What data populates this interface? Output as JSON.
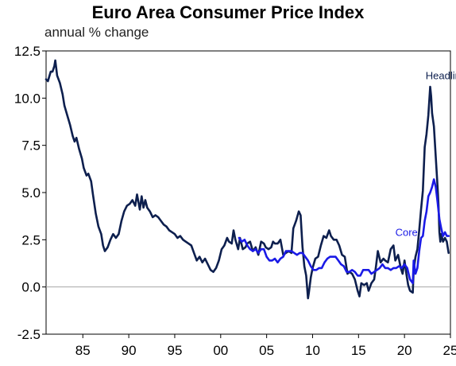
{
  "chart_data": {
    "type": "line",
    "title": "Euro Area Consumer Price Index",
    "subtitle": "annual % change",
    "xlabel": "",
    "ylabel": "",
    "xlim": [
      1981.0,
      2025.0
    ],
    "ylim": [
      -2.5,
      12.5
    ],
    "grid": false,
    "zero_line": true,
    "x_tick_labels": [
      {
        "x": 1985,
        "label": "85"
      },
      {
        "x": 1990,
        "label": "90"
      },
      {
        "x": 1995,
        "label": "95"
      },
      {
        "x": 2000,
        "label": "00"
      },
      {
        "x": 2005,
        "label": "05"
      },
      {
        "x": 2010,
        "label": "10"
      },
      {
        "x": 2015,
        "label": "15"
      },
      {
        "x": 2020,
        "label": "20"
      },
      {
        "x": 2025,
        "label": "25"
      }
    ],
    "y_ticks": [
      {
        "y": 12.5,
        "label": "12.5"
      },
      {
        "y": 10.0,
        "label": "10.0"
      },
      {
        "y": 7.5,
        "label": "7.5"
      },
      {
        "y": 5.0,
        "label": "5.0"
      },
      {
        "y": 2.5,
        "label": "2.5"
      },
      {
        "y": 0.0,
        "label": "0.0"
      },
      {
        "y": -2.5,
        "label": "-2.5"
      }
    ],
    "series": [
      {
        "name": "Headline",
        "color": "#0d1f4e",
        "points": [
          [
            1981.0,
            11.0
          ],
          [
            1981.2,
            10.9
          ],
          [
            1981.5,
            11.4
          ],
          [
            1981.7,
            11.4
          ],
          [
            1981.9,
            11.7
          ],
          [
            1982.0,
            12.0
          ],
          [
            1982.2,
            11.2
          ],
          [
            1982.5,
            10.8
          ],
          [
            1982.8,
            10.2
          ],
          [
            1983.0,
            9.6
          ],
          [
            1983.3,
            9.1
          ],
          [
            1983.6,
            8.6
          ],
          [
            1983.9,
            8.0
          ],
          [
            1984.1,
            7.7
          ],
          [
            1984.3,
            7.9
          ],
          [
            1984.6,
            7.3
          ],
          [
            1984.9,
            6.8
          ],
          [
            1985.1,
            6.3
          ],
          [
            1985.4,
            5.9
          ],
          [
            1985.6,
            6.0
          ],
          [
            1985.9,
            5.6
          ],
          [
            1986.1,
            4.9
          ],
          [
            1986.4,
            3.9
          ],
          [
            1986.7,
            3.2
          ],
          [
            1987.0,
            2.8
          ],
          [
            1987.2,
            2.2
          ],
          [
            1987.4,
            1.9
          ],
          [
            1987.7,
            2.1
          ],
          [
            1988.0,
            2.5
          ],
          [
            1988.3,
            2.8
          ],
          [
            1988.6,
            2.6
          ],
          [
            1988.9,
            2.8
          ],
          [
            1989.2,
            3.5
          ],
          [
            1989.5,
            4.0
          ],
          [
            1989.8,
            4.3
          ],
          [
            1990.1,
            4.4
          ],
          [
            1990.4,
            4.6
          ],
          [
            1990.7,
            4.3
          ],
          [
            1990.9,
            4.9
          ],
          [
            1991.2,
            4.1
          ],
          [
            1991.4,
            4.8
          ],
          [
            1991.6,
            4.2
          ],
          [
            1991.8,
            4.6
          ],
          [
            1992.0,
            4.2
          ],
          [
            1992.3,
            4.0
          ],
          [
            1992.6,
            3.7
          ],
          [
            1992.9,
            3.8
          ],
          [
            1993.2,
            3.7
          ],
          [
            1993.5,
            3.5
          ],
          [
            1993.8,
            3.3
          ],
          [
            1994.1,
            3.2
          ],
          [
            1994.4,
            3.0
          ],
          [
            1994.7,
            2.9
          ],
          [
            1995.0,
            2.8
          ],
          [
            1995.3,
            2.6
          ],
          [
            1995.6,
            2.7
          ],
          [
            1995.9,
            2.5
          ],
          [
            1996.2,
            2.4
          ],
          [
            1996.5,
            2.3
          ],
          [
            1996.8,
            2.2
          ],
          [
            1997.1,
            1.8
          ],
          [
            1997.4,
            1.4
          ],
          [
            1997.7,
            1.6
          ],
          [
            1998.0,
            1.3
          ],
          [
            1998.3,
            1.5
          ],
          [
            1998.6,
            1.2
          ],
          [
            1998.9,
            0.9
          ],
          [
            1999.2,
            0.8
          ],
          [
            1999.5,
            1.0
          ],
          [
            1999.8,
            1.4
          ],
          [
            2000.1,
            2.0
          ],
          [
            2000.4,
            2.2
          ],
          [
            2000.7,
            2.6
          ],
          [
            2000.9,
            2.4
          ],
          [
            2001.2,
            2.3
          ],
          [
            2001.4,
            3.0
          ],
          [
            2001.6,
            2.5
          ],
          [
            2001.9,
            2.0
          ],
          [
            2002.1,
            2.6
          ],
          [
            2002.4,
            2.0
          ],
          [
            2002.7,
            2.1
          ],
          [
            2002.9,
            2.3
          ],
          [
            2003.2,
            2.4
          ],
          [
            2003.5,
            1.9
          ],
          [
            2003.8,
            2.1
          ],
          [
            2004.1,
            1.7
          ],
          [
            2004.4,
            2.4
          ],
          [
            2004.7,
            2.3
          ],
          [
            2004.9,
            2.1
          ],
          [
            2005.2,
            2.0
          ],
          [
            2005.5,
            2.1
          ],
          [
            2005.7,
            2.4
          ],
          [
            2005.9,
            2.3
          ],
          [
            2006.2,
            2.3
          ],
          [
            2006.5,
            2.5
          ],
          [
            2006.8,
            1.7
          ],
          [
            2007.1,
            1.8
          ],
          [
            2007.4,
            1.9
          ],
          [
            2007.7,
            1.8
          ],
          [
            2007.9,
            3.1
          ],
          [
            2008.2,
            3.5
          ],
          [
            2008.5,
            4.0
          ],
          [
            2008.7,
            3.8
          ],
          [
            2008.9,
            2.1
          ],
          [
            2009.1,
            1.1
          ],
          [
            2009.3,
            0.6
          ],
          [
            2009.5,
            -0.6
          ],
          [
            2009.6,
            -0.3
          ],
          [
            2009.8,
            0.5
          ],
          [
            2010.0,
            1.0
          ],
          [
            2010.3,
            1.5
          ],
          [
            2010.6,
            1.6
          ],
          [
            2010.9,
            2.2
          ],
          [
            2011.2,
            2.7
          ],
          [
            2011.5,
            2.6
          ],
          [
            2011.8,
            3.0
          ],
          [
            2012.0,
            2.7
          ],
          [
            2012.3,
            2.5
          ],
          [
            2012.6,
            2.5
          ],
          [
            2012.9,
            2.2
          ],
          [
            2013.2,
            1.7
          ],
          [
            2013.5,
            1.6
          ],
          [
            2013.8,
            0.7
          ],
          [
            2014.0,
            0.8
          ],
          [
            2014.3,
            0.7
          ],
          [
            2014.6,
            0.4
          ],
          [
            2014.9,
            -0.2
          ],
          [
            2015.1,
            -0.5
          ],
          [
            2015.3,
            0.2
          ],
          [
            2015.6,
            0.1
          ],
          [
            2015.9,
            0.2
          ],
          [
            2016.1,
            -0.2
          ],
          [
            2016.4,
            0.2
          ],
          [
            2016.7,
            0.4
          ],
          [
            2016.9,
            1.1
          ],
          [
            2017.1,
            1.9
          ],
          [
            2017.4,
            1.3
          ],
          [
            2017.7,
            1.5
          ],
          [
            2017.9,
            1.4
          ],
          [
            2018.2,
            1.3
          ],
          [
            2018.5,
            2.0
          ],
          [
            2018.8,
            2.2
          ],
          [
            2019.0,
            1.4
          ],
          [
            2019.3,
            1.7
          ],
          [
            2019.6,
            1.0
          ],
          [
            2019.8,
            0.7
          ],
          [
            2020.0,
            1.4
          ],
          [
            2020.2,
            0.7
          ],
          [
            2020.4,
            0.1
          ],
          [
            2020.6,
            -0.2
          ],
          [
            2020.9,
            -0.3
          ],
          [
            2021.0,
            0.9
          ],
          [
            2021.2,
            1.6
          ],
          [
            2021.4,
            2.0
          ],
          [
            2021.6,
            3.0
          ],
          [
            2021.8,
            4.1
          ],
          [
            2022.0,
            5.1
          ],
          [
            2022.2,
            7.4
          ],
          [
            2022.4,
            8.1
          ],
          [
            2022.6,
            9.1
          ],
          [
            2022.8,
            10.6
          ],
          [
            2022.9,
            10.1
          ],
          [
            2023.0,
            9.2
          ],
          [
            2023.2,
            8.5
          ],
          [
            2023.4,
            6.9
          ],
          [
            2023.6,
            5.3
          ],
          [
            2023.7,
            4.3
          ],
          [
            2023.8,
            2.9
          ],
          [
            2023.9,
            2.4
          ],
          [
            2024.0,
            2.8
          ],
          [
            2024.2,
            2.4
          ],
          [
            2024.4,
            2.6
          ],
          [
            2024.6,
            2.4
          ],
          [
            2024.8,
            1.8
          ]
        ]
      },
      {
        "name": "Core",
        "color": "#1a1ae6",
        "points": [
          [
            2002.0,
            2.6
          ],
          [
            2002.3,
            2.4
          ],
          [
            2002.6,
            2.5
          ],
          [
            2002.9,
            2.2
          ],
          [
            2003.2,
            2.0
          ],
          [
            2003.5,
            1.9
          ],
          [
            2003.8,
            2.0
          ],
          [
            2004.1,
            1.8
          ],
          [
            2004.4,
            2.0
          ],
          [
            2004.7,
            2.0
          ],
          [
            2005.0,
            1.6
          ],
          [
            2005.3,
            1.4
          ],
          [
            2005.6,
            1.4
          ],
          [
            2005.9,
            1.5
          ],
          [
            2006.2,
            1.3
          ],
          [
            2006.5,
            1.5
          ],
          [
            2006.8,
            1.6
          ],
          [
            2007.1,
            1.9
          ],
          [
            2007.4,
            1.9
          ],
          [
            2007.7,
            1.9
          ],
          [
            2008.0,
            1.8
          ],
          [
            2008.3,
            1.7
          ],
          [
            2008.6,
            1.8
          ],
          [
            2008.9,
            1.8
          ],
          [
            2009.2,
            1.6
          ],
          [
            2009.5,
            1.4
          ],
          [
            2009.8,
            1.1
          ],
          [
            2010.1,
            0.9
          ],
          [
            2010.4,
            0.9
          ],
          [
            2010.7,
            1.0
          ],
          [
            2011.0,
            1.0
          ],
          [
            2011.3,
            1.3
          ],
          [
            2011.6,
            1.5
          ],
          [
            2011.9,
            1.6
          ],
          [
            2012.2,
            1.6
          ],
          [
            2012.5,
            1.6
          ],
          [
            2012.8,
            1.4
          ],
          [
            2013.1,
            1.2
          ],
          [
            2013.4,
            1.1
          ],
          [
            2013.7,
            0.8
          ],
          [
            2014.0,
            0.8
          ],
          [
            2014.3,
            0.9
          ],
          [
            2014.6,
            0.8
          ],
          [
            2014.9,
            0.6
          ],
          [
            2015.2,
            0.6
          ],
          [
            2015.5,
            0.9
          ],
          [
            2015.8,
            0.9
          ],
          [
            2016.1,
            0.9
          ],
          [
            2016.4,
            0.7
          ],
          [
            2016.7,
            0.8
          ],
          [
            2017.0,
            0.9
          ],
          [
            2017.3,
            1.0
          ],
          [
            2017.6,
            1.2
          ],
          [
            2017.9,
            1.0
          ],
          [
            2018.2,
            1.0
          ],
          [
            2018.5,
            0.9
          ],
          [
            2018.8,
            1.0
          ],
          [
            2019.1,
            1.0
          ],
          [
            2019.4,
            1.1
          ],
          [
            2019.7,
            1.0
          ],
          [
            2020.0,
            1.2
          ],
          [
            2020.3,
            1.0
          ],
          [
            2020.6,
            0.4
          ],
          [
            2020.9,
            0.2
          ],
          [
            2021.0,
            1.4
          ],
          [
            2021.2,
            0.7
          ],
          [
            2021.4,
            1.0
          ],
          [
            2021.6,
            1.9
          ],
          [
            2021.8,
            2.6
          ],
          [
            2022.0,
            2.7
          ],
          [
            2022.2,
            3.5
          ],
          [
            2022.4,
            4.0
          ],
          [
            2022.6,
            4.8
          ],
          [
            2022.8,
            5.0
          ],
          [
            2023.0,
            5.3
          ],
          [
            2023.2,
            5.7
          ],
          [
            2023.4,
            5.3
          ],
          [
            2023.6,
            4.5
          ],
          [
            2023.8,
            3.6
          ],
          [
            2024.0,
            3.1
          ],
          [
            2024.2,
            2.7
          ],
          [
            2024.4,
            2.9
          ],
          [
            2024.6,
            2.7
          ],
          [
            2024.8,
            2.7
          ]
        ]
      }
    ],
    "annotations": [
      {
        "text": "Headline",
        "x": 2022.3,
        "y": 11.0,
        "color": "#0d1f4e"
      },
      {
        "text": "Core",
        "x": 2019.0,
        "y": 2.7,
        "color": "#1a1ae6"
      }
    ]
  }
}
